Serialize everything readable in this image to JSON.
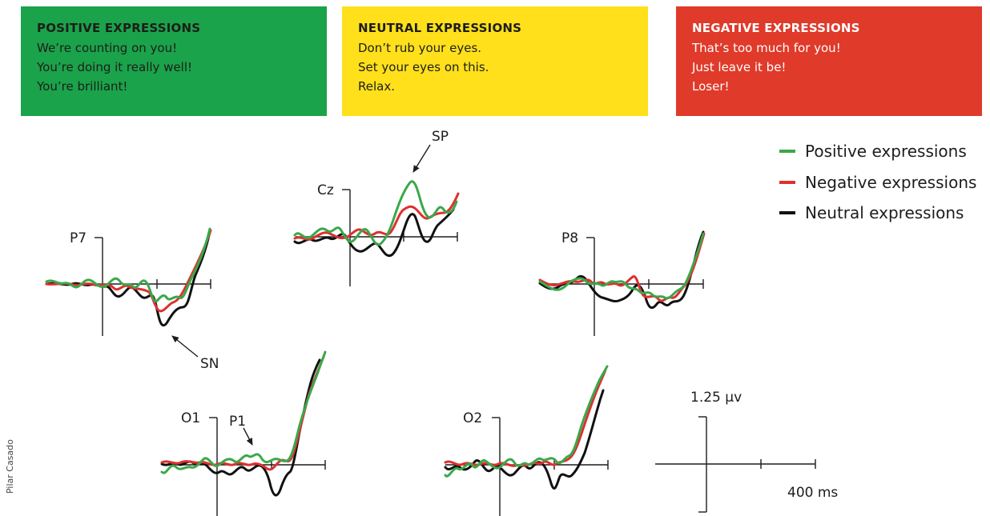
{
  "colors": {
    "positive": "#1aa34a",
    "neutral": "#ffe01b",
    "negative": "#e03a2a",
    "trace_positive": "#3aa84a",
    "trace_negative": "#de3030",
    "trace_neutral": "#111111"
  },
  "boxes": {
    "positive": {
      "title": "POSITIVE EXPRESSIONS",
      "lines": [
        "We’re counting on you!",
        "You’re doing it really well!",
        "You’re brilliant!"
      ]
    },
    "neutral": {
      "title": "NEUTRAL EXPRESSIONS",
      "lines": [
        "Don’t rub your eyes.",
        "Set your eyes on this.",
        "Relax."
      ]
    },
    "negative": {
      "title": "NEGATIVE EXPRESSIONS",
      "lines": [
        "That’s too much for you!",
        "Just leave it be!",
        "Loser!"
      ]
    }
  },
  "legend": [
    "Positive expressions",
    "Negative expressions",
    "Neutral expressions"
  ],
  "electrodes": {
    "p7": "P7",
    "cz": "Cz",
    "p8": "P8",
    "o1": "O1",
    "o2": "O2"
  },
  "annotations": {
    "sp": "SP",
    "sn": "SN",
    "p1": "P1"
  },
  "scale": {
    "amplitude": "1.25 μv",
    "time": "400 ms"
  },
  "credit": "Pilar Casado"
}
